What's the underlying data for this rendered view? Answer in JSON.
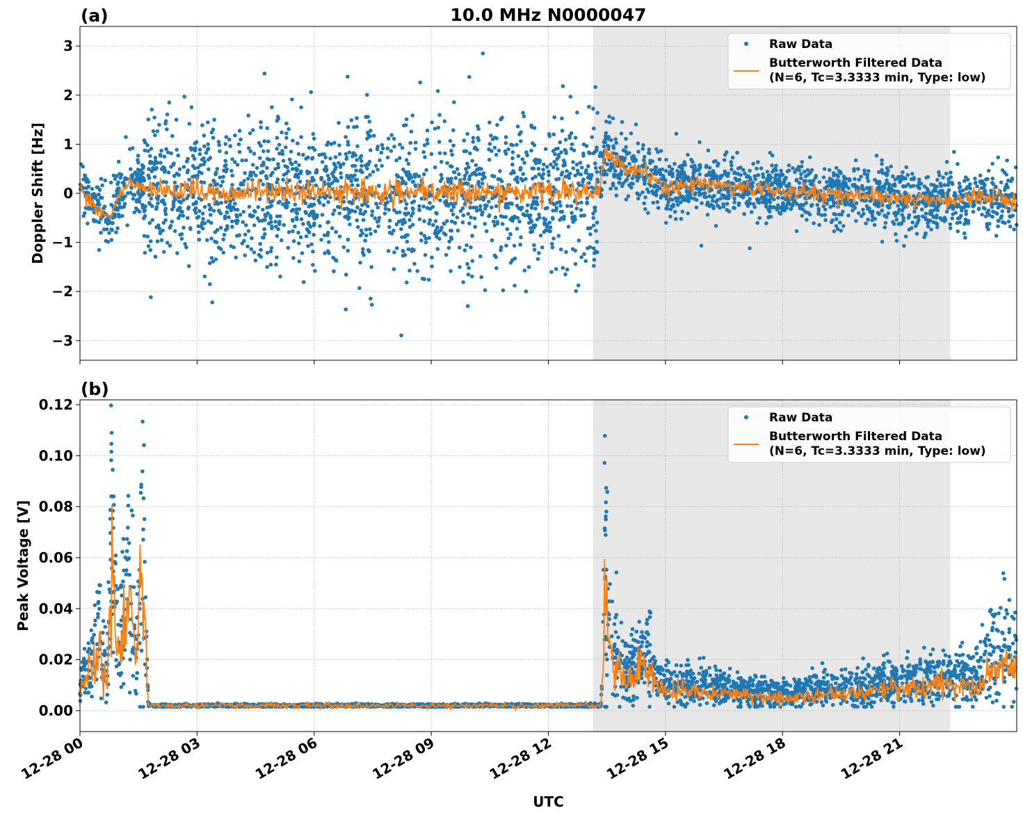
{
  "chart_data": [
    {
      "type": "scatter",
      "panel_label": "(a)",
      "title": "10.0 MHz N0000047",
      "xlabel": "",
      "ylabel": "Doppler Shift [Hz]",
      "xlim_hours": [
        0,
        24
      ],
      "ylim": [
        -3.4,
        3.4
      ],
      "yticks": [
        -3,
        -2,
        -1,
        0,
        1,
        2,
        3
      ],
      "ytick_labels": [
        "−3",
        "−2",
        "−1",
        "0",
        "1",
        "2",
        "3"
      ],
      "shaded_hours": [
        13.15,
        22.3
      ],
      "grid": true,
      "legend_position": "top-right",
      "legend": [
        "Raw Data",
        "Butterworth Filtered Data",
        "(N=6, Tc=3.3333 min, Type: low)"
      ],
      "series": [
        {
          "name": "Raw Data",
          "color": "#1f77b4",
          "spread_hours": [
            0,
            1.6,
            1.65,
            13.3,
            13.35,
            24
          ],
          "spread": [
            0.3,
            0.3,
            0.75,
            0.75,
            0.3,
            0.3
          ]
        },
        {
          "name": "Butterworth Filtered Data",
          "color": "#ff7f0e",
          "x": [
            0,
            0.3,
            0.6,
            0.8,
            1.0,
            1.3,
            1.6,
            2,
            3,
            4,
            5,
            6,
            7,
            8,
            9,
            10,
            11,
            12,
            13,
            13.3,
            13.45,
            14,
            14.5,
            15,
            16,
            17,
            18,
            19,
            20,
            21,
            22,
            23,
            24
          ],
          "y": [
            0.1,
            -0.2,
            -0.4,
            -0.5,
            0.0,
            0.2,
            0.1,
            0.0,
            0.05,
            0.0,
            0.05,
            0.0,
            0.05,
            0.0,
            0.0,
            0.05,
            0.0,
            0.05,
            0.0,
            0.0,
            0.8,
            0.5,
            0.4,
            0.1,
            0.2,
            0.1,
            0.05,
            0.0,
            -0.05,
            -0.1,
            -0.15,
            -0.1,
            -0.1
          ],
          "noise": 0.12
        }
      ]
    },
    {
      "type": "scatter",
      "panel_label": "(b)",
      "xlabel": "UTC",
      "ylabel": "Peak Voltage [V]",
      "xlim_hours": [
        0,
        24
      ],
      "ylim": [
        -0.0082,
        0.1219
      ],
      "yticks": [
        0,
        0.02,
        0.04,
        0.06,
        0.08,
        0.1,
        0.12
      ],
      "ytick_labels": [
        "0.00",
        "0.02",
        "0.04",
        "0.06",
        "0.08",
        "0.10",
        "0.12"
      ],
      "xticks_hours": [
        0,
        3,
        6,
        9,
        12,
        15,
        18,
        21
      ],
      "xtick_labels": [
        "12-28 00",
        "12-28 03",
        "12-28 06",
        "12-28 09",
        "12-28 12",
        "12-28 15",
        "12-28 18",
        "12-28 21"
      ],
      "shaded_hours": [
        13.15,
        22.3
      ],
      "grid": true,
      "legend_position": "top-right",
      "legend": [
        "Raw Data",
        "Butterworth Filtered Data",
        "(N=6, Tc=3.3333 min, Type: low)"
      ],
      "series": [
        {
          "name": "Raw Data",
          "color": "#1f77b4",
          "spread_hours": [
            0,
            1.7,
            1.75,
            13.35,
            13.4,
            24
          ],
          "spread": [
            0.5,
            0.5,
            0.15,
            0.15,
            0.5,
            0.5
          ]
        },
        {
          "name": "Butterworth Filtered Data",
          "color": "#ff7f0e",
          "x": [
            0,
            0.3,
            0.5,
            0.7,
            0.8,
            0.9,
            1.0,
            1.15,
            1.3,
            1.45,
            1.6,
            1.7,
            1.75,
            2,
            3,
            6,
            9,
            12,
            13.35,
            13.45,
            13.6,
            14,
            14.5,
            14.8,
            15,
            16,
            17,
            18,
            19,
            20,
            21,
            22,
            23,
            23.7,
            24
          ],
          "y": [
            0.008,
            0.015,
            0.025,
            0.01,
            0.055,
            0.03,
            0.02,
            0.035,
            0.04,
            0.015,
            0.062,
            0.02,
            0.002,
            0.002,
            0.002,
            0.002,
            0.002,
            0.002,
            0.002,
            0.045,
            0.02,
            0.012,
            0.018,
            0.01,
            0.008,
            0.007,
            0.006,
            0.005,
            0.006,
            0.007,
            0.009,
            0.01,
            0.01,
            0.02,
            0.015
          ],
          "noise": 0.25
        }
      ]
    }
  ]
}
